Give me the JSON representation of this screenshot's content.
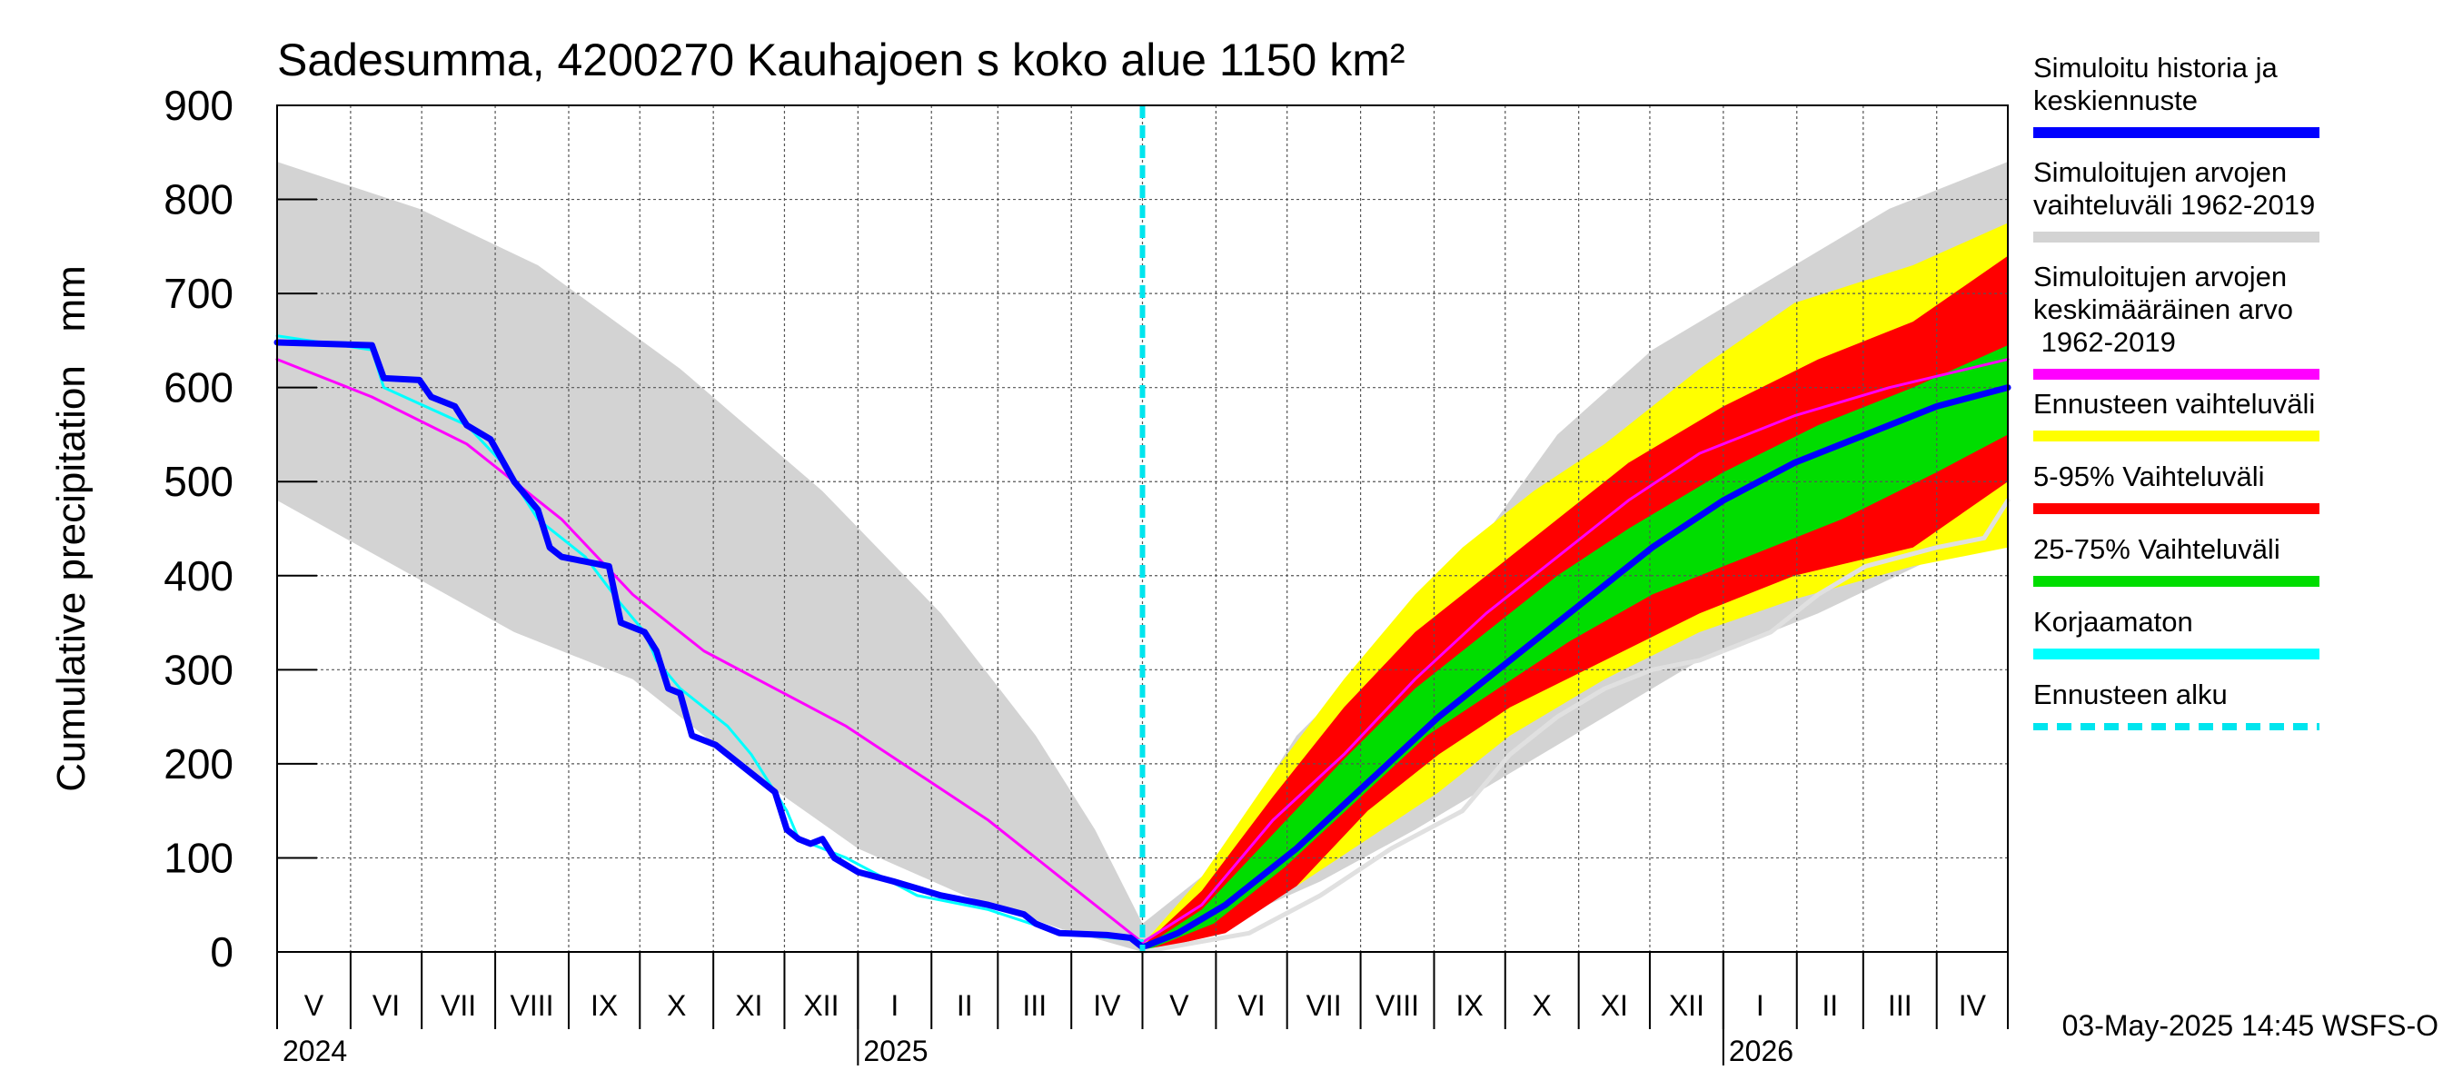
{
  "chart_data": {
    "type": "area",
    "title": "Sadesumma, 4200270 Kauhajoen s koko alue 1150 km²",
    "ylabel": "Cumulative precipitation   mm",
    "ylim": [
      0,
      900
    ],
    "yticks": [
      0,
      100,
      200,
      300,
      400,
      500,
      600,
      700,
      800,
      900
    ],
    "xlim_days": [
      0,
      730
    ],
    "months": [
      {
        "label": "V",
        "start": 0
      },
      {
        "label": "VI",
        "start": 31
      },
      {
        "label": "VII",
        "start": 61
      },
      {
        "label": "VIII",
        "start": 92
      },
      {
        "label": "IX",
        "start": 123
      },
      {
        "label": "X",
        "start": 153
      },
      {
        "label": "XI",
        "start": 184
      },
      {
        "label": "XII",
        "start": 214
      },
      {
        "label": "I",
        "start": 245
      },
      {
        "label": "II",
        "start": 276
      },
      {
        "label": "III",
        "start": 304
      },
      {
        "label": "IV",
        "start": 335
      },
      {
        "label": "V",
        "start": 365
      },
      {
        "label": "VI",
        "start": 396
      },
      {
        "label": "VII",
        "start": 426
      },
      {
        "label": "VIII",
        "start": 457
      },
      {
        "label": "IX",
        "start": 488
      },
      {
        "label": "X",
        "start": 518
      },
      {
        "label": "XI",
        "start": 549
      },
      {
        "label": "XII",
        "start": 579
      },
      {
        "label": "I",
        "start": 610
      },
      {
        "label": "II",
        "start": 641
      },
      {
        "label": "III",
        "start": 669
      },
      {
        "label": "IV",
        "start": 700
      }
    ],
    "month_end": 730,
    "years": [
      {
        "label": "2024",
        "at": 0
      },
      {
        "label": "2025",
        "at": 245
      },
      {
        "label": "2026",
        "at": 610
      }
    ],
    "year_boundaries": [
      245,
      610
    ],
    "forecast_start_day": 365,
    "series": [
      {
        "name": "Simuloitujen arvojen vaihteluväli 1962-2019",
        "kind": "band",
        "color": "#d3d3d3",
        "upper": [
          [
            0,
            840
          ],
          [
            60,
            790
          ],
          [
            110,
            730
          ],
          [
            170,
            620
          ],
          [
            230,
            490
          ],
          [
            280,
            360
          ],
          [
            320,
            230
          ],
          [
            345,
            130
          ],
          [
            365,
            30
          ],
          [
            395,
            90
          ],
          [
            430,
            230
          ],
          [
            470,
            330
          ],
          [
            500,
            410
          ],
          [
            540,
            550
          ],
          [
            580,
            640
          ],
          [
            620,
            700
          ],
          [
            680,
            790
          ],
          [
            730,
            840
          ]
        ],
        "lower": [
          [
            0,
            480
          ],
          [
            50,
            410
          ],
          [
            100,
            340
          ],
          [
            150,
            290
          ],
          [
            200,
            190
          ],
          [
            245,
            110
          ],
          [
            290,
            60
          ],
          [
            330,
            25
          ],
          [
            365,
            0
          ],
          [
            400,
            30
          ],
          [
            440,
            75
          ],
          [
            480,
            130
          ],
          [
            520,
            190
          ],
          [
            560,
            250
          ],
          [
            600,
            310
          ],
          [
            650,
            360
          ],
          [
            700,
            420
          ],
          [
            730,
            470
          ]
        ]
      },
      {
        "name": "Ennusteen vaihteluväli",
        "kind": "band",
        "color": "#ffff00",
        "upper": [
          [
            365,
            8
          ],
          [
            390,
            80
          ],
          [
            420,
            190
          ],
          [
            450,
            290
          ],
          [
            480,
            380
          ],
          [
            500,
            430
          ],
          [
            530,
            490
          ],
          [
            560,
            540
          ],
          [
            600,
            620
          ],
          [
            640,
            690
          ],
          [
            690,
            730
          ],
          [
            730,
            775
          ]
        ],
        "lower": [
          [
            365,
            0
          ],
          [
            400,
            25
          ],
          [
            430,
            70
          ],
          [
            460,
            120
          ],
          [
            490,
            170
          ],
          [
            520,
            230
          ],
          [
            560,
            290
          ],
          [
            600,
            340
          ],
          [
            640,
            375
          ],
          [
            690,
            410
          ],
          [
            730,
            430
          ]
        ]
      },
      {
        "name": "5-95% Vaihteluväli",
        "kind": "band",
        "color": "#ff0000",
        "upper": [
          [
            365,
            6
          ],
          [
            390,
            65
          ],
          [
            420,
            165
          ],
          [
            450,
            260
          ],
          [
            480,
            340
          ],
          [
            510,
            400
          ],
          [
            540,
            460
          ],
          [
            570,
            520
          ],
          [
            610,
            580
          ],
          [
            650,
            630
          ],
          [
            690,
            670
          ],
          [
            730,
            740
          ]
        ],
        "lower": [
          [
            365,
            0
          ],
          [
            400,
            20
          ],
          [
            430,
            70
          ],
          [
            460,
            150
          ],
          [
            490,
            210
          ],
          [
            520,
            260
          ],
          [
            560,
            310
          ],
          [
            600,
            360
          ],
          [
            640,
            400
          ],
          [
            690,
            430
          ],
          [
            730,
            500
          ]
        ]
      },
      {
        "name": "25-75% Vaihteluväli",
        "kind": "band",
        "color": "#00dd00",
        "upper": [
          [
            365,
            4
          ],
          [
            390,
            45
          ],
          [
            420,
            125
          ],
          [
            450,
            205
          ],
          [
            480,
            280
          ],
          [
            510,
            340
          ],
          [
            540,
            400
          ],
          [
            570,
            450
          ],
          [
            610,
            510
          ],
          [
            650,
            560
          ],
          [
            690,
            600
          ],
          [
            730,
            645
          ]
        ],
        "lower": [
          [
            365,
            0
          ],
          [
            395,
            30
          ],
          [
            425,
            90
          ],
          [
            455,
            160
          ],
          [
            485,
            230
          ],
          [
            515,
            280
          ],
          [
            545,
            330
          ],
          [
            580,
            380
          ],
          [
            620,
            420
          ],
          [
            660,
            460
          ],
          [
            700,
            510
          ],
          [
            730,
            550
          ]
        ]
      },
      {
        "name": "Simuloitujen arvojen keskimääräinen arvo 1962-2019",
        "kind": "line",
        "color": "#ff00ff",
        "width": 3,
        "points": [
          [
            0,
            630
          ],
          [
            40,
            590
          ],
          [
            80,
            540
          ],
          [
            100,
            500
          ],
          [
            120,
            460
          ],
          [
            150,
            380
          ],
          [
            180,
            320
          ],
          [
            210,
            280
          ],
          [
            240,
            240
          ],
          [
            270,
            190
          ],
          [
            300,
            140
          ],
          [
            330,
            80
          ],
          [
            365,
            10
          ],
          [
            390,
            50
          ],
          [
            420,
            140
          ],
          [
            450,
            210
          ],
          [
            480,
            290
          ],
          [
            510,
            360
          ],
          [
            540,
            420
          ],
          [
            570,
            480
          ],
          [
            600,
            530
          ],
          [
            640,
            570
          ],
          [
            680,
            600
          ],
          [
            730,
            630
          ]
        ]
      },
      {
        "name": "Korjaamaton",
        "kind": "line",
        "color": "#00ffff",
        "width": 3,
        "points": [
          [
            0,
            655
          ],
          [
            40,
            640
          ],
          [
            45,
            600
          ],
          [
            80,
            560
          ],
          [
            95,
            520
          ],
          [
            110,
            460
          ],
          [
            120,
            440
          ],
          [
            130,
            420
          ],
          [
            145,
            370
          ],
          [
            155,
            340
          ],
          [
            160,
            310
          ],
          [
            170,
            280
          ],
          [
            190,
            240
          ],
          [
            200,
            210
          ],
          [
            215,
            150
          ],
          [
            220,
            120
          ],
          [
            240,
            100
          ],
          [
            270,
            60
          ],
          [
            300,
            45
          ],
          [
            330,
            20
          ],
          [
            365,
            12
          ]
        ]
      },
      {
        "name": "Simuloitu historia ja keskiennuste",
        "kind": "line",
        "color": "#0000ff",
        "width": 7,
        "points": [
          [
            0,
            648
          ],
          [
            40,
            645
          ],
          [
            45,
            610
          ],
          [
            60,
            608
          ],
          [
            65,
            590
          ],
          [
            75,
            580
          ],
          [
            80,
            560
          ],
          [
            90,
            545
          ],
          [
            100,
            500
          ],
          [
            110,
            470
          ],
          [
            115,
            430
          ],
          [
            120,
            420
          ],
          [
            130,
            415
          ],
          [
            140,
            410
          ],
          [
            145,
            350
          ],
          [
            155,
            340
          ],
          [
            160,
            320
          ],
          [
            165,
            280
          ],
          [
            170,
            275
          ],
          [
            175,
            230
          ],
          [
            185,
            220
          ],
          [
            205,
            180
          ],
          [
            210,
            170
          ],
          [
            215,
            130
          ],
          [
            220,
            120
          ],
          [
            225,
            115
          ],
          [
            230,
            120
          ],
          [
            235,
            100
          ],
          [
            245,
            85
          ],
          [
            260,
            75
          ],
          [
            280,
            60
          ],
          [
            300,
            50
          ],
          [
            315,
            40
          ],
          [
            320,
            30
          ],
          [
            330,
            20
          ],
          [
            350,
            18
          ],
          [
            360,
            15
          ],
          [
            365,
            5
          ],
          [
            380,
            20
          ],
          [
            400,
            50
          ],
          [
            430,
            110
          ],
          [
            460,
            180
          ],
          [
            490,
            250
          ],
          [
            520,
            310
          ],
          [
            550,
            370
          ],
          [
            580,
            430
          ],
          [
            610,
            480
          ],
          [
            640,
            520
          ],
          [
            670,
            550
          ],
          [
            700,
            580
          ],
          [
            730,
            600
          ]
        ]
      },
      {
        "name": "Ennusteen toteuma",
        "kind": "line",
        "color": "#e0e0e0",
        "width": 5,
        "legend": false,
        "points": [
          [
            365,
            0
          ],
          [
            410,
            20
          ],
          [
            440,
            60
          ],
          [
            470,
            110
          ],
          [
            500,
            150
          ],
          [
            520,
            210
          ],
          [
            540,
            250
          ],
          [
            560,
            280
          ],
          [
            580,
            300
          ],
          [
            600,
            310
          ],
          [
            630,
            340
          ],
          [
            650,
            380
          ],
          [
            670,
            410
          ],
          [
            700,
            430
          ],
          [
            720,
            440
          ],
          [
            730,
            480
          ]
        ]
      }
    ],
    "legend": [
      {
        "label": "Simuloitu historia ja keskiennuste",
        "color": "#0000ff",
        "style": "solid"
      },
      {
        "label": "Simuloitujen arvojen vaihteluväli 1962-2019",
        "color": "#d3d3d3",
        "style": "solid"
      },
      {
        "label": "Simuloitujen arvojen keskimääräinen arvo 1962-2019",
        "color": "#ff00ff",
        "style": "solid"
      },
      {
        "label": "Ennusteen vaihteluväli",
        "color": "#ffff00",
        "style": "solid"
      },
      {
        "label": "5-95% Vaihteluväli",
        "color": "#ff0000",
        "style": "solid"
      },
      {
        "label": "25-75% Vaihteluväli",
        "color": "#00dd00",
        "style": "solid"
      },
      {
        "label": "Korjaamaton",
        "color": "#00ffff",
        "style": "solid"
      },
      {
        "label": "Ennusteen alku",
        "color": "#00e5ee",
        "style": "dashed"
      }
    ],
    "timestamp": "03-May-2025 14:45 WSFS-O"
  }
}
